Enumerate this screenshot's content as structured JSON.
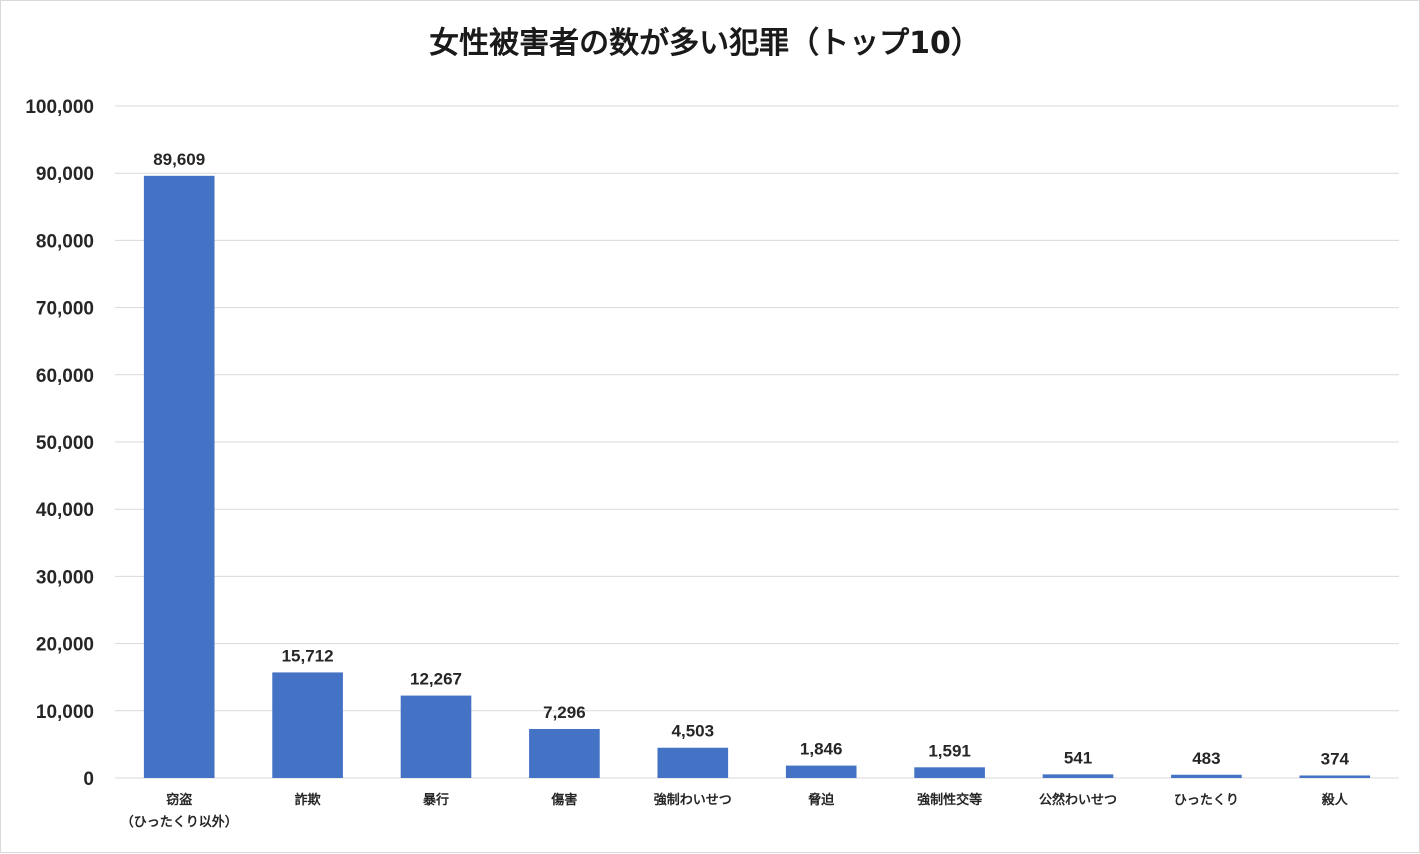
{
  "chart_data": {
    "type": "bar",
    "title": "女性被害者の数が多い犯罪（トップ10）",
    "categories": [
      [
        "窃盗",
        "（ひったくり以外）"
      ],
      [
        "詐欺"
      ],
      [
        "暴行"
      ],
      [
        "傷害"
      ],
      [
        "強制わいせつ"
      ],
      [
        "脅迫"
      ],
      [
        "強制性交等"
      ],
      [
        "公然わいせつ"
      ],
      [
        "ひったくり"
      ],
      [
        "殺人"
      ]
    ],
    "values": [
      89609,
      15712,
      12267,
      7296,
      4503,
      1846,
      1591,
      541,
      483,
      374
    ],
    "data_labels": [
      "89,609",
      "15,712",
      "12,267",
      "7,296",
      "4,503",
      "1,846",
      "1,591",
      "541",
      "483",
      "374"
    ],
    "yticks": [
      "0",
      "10,000",
      "20,000",
      "30,000",
      "40,000",
      "50,000",
      "60,000",
      "70,000",
      "80,000",
      "90,000",
      "100,000"
    ],
    "ylim": [
      0,
      100000
    ],
    "grid": true,
    "bar_color": "#4472c4"
  }
}
